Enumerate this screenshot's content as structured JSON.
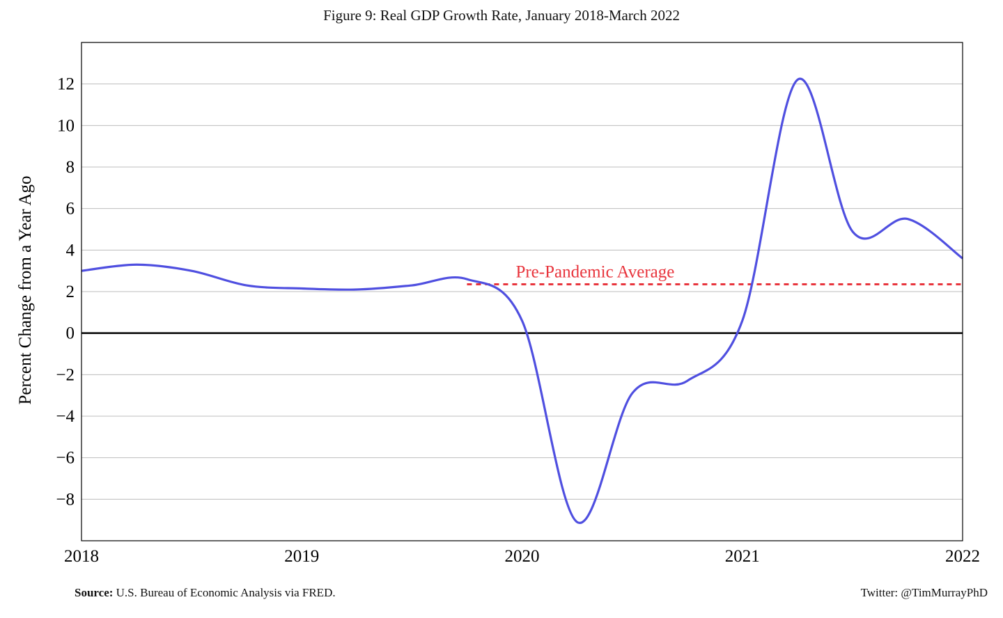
{
  "chart_data": {
    "type": "line",
    "title": "Figure 9: Real GDP Growth Rate, January 2018-March 2022",
    "xlabel": "",
    "ylabel": "Percent Change from a Year Ago",
    "xlim": [
      2018,
      2022
    ],
    "ylim": [
      -10,
      14
    ],
    "x_ticks": [
      2018,
      2019,
      2020,
      2021,
      2022
    ],
    "x_tick_labels": [
      "2018",
      "2019",
      "2020",
      "2021",
      "2022"
    ],
    "y_ticks": [
      -8,
      -6,
      -4,
      -2,
      0,
      2,
      4,
      6,
      8,
      10,
      12
    ],
    "y_tick_labels": [
      "−8",
      "−6",
      "−4",
      "−2",
      "0",
      "2",
      "4",
      "6",
      "8",
      "10",
      "12"
    ],
    "grid": true,
    "series": [
      {
        "color": "#4f4fe0",
        "x": [
          2018.0,
          2018.25,
          2018.5,
          2018.75,
          2019.0,
          2019.25,
          2019.5,
          2019.75,
          2020.0,
          2020.25,
          2020.5,
          2020.75,
          2021.0,
          2021.25,
          2021.5,
          2021.75,
          2022.0
        ],
        "values": [
          3.0,
          3.3,
          3.0,
          2.3,
          2.15,
          2.1,
          2.3,
          2.6,
          0.6,
          -9.1,
          -2.9,
          -2.3,
          0.6,
          12.2,
          4.9,
          5.5,
          3.6
        ]
      }
    ],
    "reference_line": {
      "label": "Pre-Pandemic Average",
      "value": 2.35,
      "x_start": 2019.75,
      "x_end": 2022.0,
      "color": "#e8343c"
    },
    "zero_line": {
      "value": 0,
      "color": "#000000"
    }
  },
  "footer": {
    "source_label": "Source:",
    "source_text": "U.S. Bureau of Economic Analysis via FRED.",
    "credit": "Twitter: @TimMurrayPhD"
  }
}
